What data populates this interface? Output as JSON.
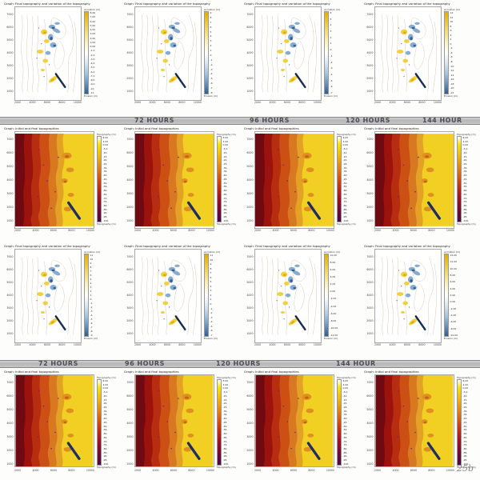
{
  "page": {
    "number": "25b"
  },
  "time_bands": [
    {
      "labels": [
        "72 HOURS",
        "96 HOURS",
        "120 HOURS",
        "144 HOUR"
      ],
      "positions": [
        "28%",
        "52%",
        "72%",
        "88%"
      ]
    },
    {
      "labels": [
        "72 HOURS",
        "96 HOURS",
        "120 HOURS",
        "144 HOUR"
      ],
      "positions": [
        "8%",
        "26%",
        "45%",
        "70%"
      ]
    }
  ],
  "axes": {
    "x_ticks": [
      "2000",
      "4000",
      "6000",
      "8000",
      "10000"
    ],
    "y_ticks": [
      "7000",
      "6000",
      "5000",
      "4000",
      "3000",
      "2000",
      "1000"
    ]
  },
  "rows": [
    {
      "type": "variation",
      "title": "Graph: Final topography and variation of the topography",
      "colorbar_top": "Accretion (m)",
      "colorbar_bottom": "Erosion (m)",
      "plots": [
        {
          "cb": [
            "8.00",
            "7.00",
            "6.00",
            "5.00",
            "4.00",
            "3.00",
            "2.00",
            "1.00",
            "0.00",
            "-1.0",
            "-2.0",
            "-3.0",
            "-4.0",
            "-5.0",
            "-6.0",
            "-7.0",
            "-8.0",
            "-9.0",
            "-10.",
            "-11."
          ]
        },
        {
          "cb": [
            "9",
            "8",
            "7",
            "6",
            "5",
            "4",
            "3",
            "2",
            "1",
            "0",
            "-1",
            "-2",
            "-3",
            "-4",
            "-5",
            "-6",
            "-7",
            "-8"
          ]
        },
        {
          "cb": [
            "6",
            "5",
            "4",
            "3",
            "2",
            "1",
            "0",
            "-1",
            "-2",
            "-3",
            "-4",
            "-5",
            "-6",
            "-7"
          ]
        },
        {
          "cb": [
            "14",
            "12",
            "10",
            "8",
            "6",
            "4",
            "2",
            "0",
            "-2",
            "-4",
            "-6",
            "-8",
            "-10",
            "-12",
            "-14",
            "-16",
            "-18",
            "-20",
            "-22"
          ]
        }
      ]
    },
    {
      "type": "topo",
      "title": "Graph: Initial and final topographies",
      "colorbar_top": "Topography (m)",
      "colorbar_bottom": "Topography (m)",
      "plots": [
        {
          "cb": [
            "8.00",
            "4.00",
            "0.00",
            "-5.0",
            "-10.",
            "-15.",
            "-20.",
            "-25.",
            "-30.",
            "-35.",
            "-40.",
            "-45.",
            "-50.",
            "-55.",
            "-60.",
            "-65.",
            "-70.",
            "-75.",
            "-80.",
            "-85.",
            "-90.",
            "-95.",
            "-100."
          ]
        },
        {
          "cb": [
            "8.00",
            "4.00",
            "0.00",
            "-5.0",
            "-10.",
            "-15.",
            "-20.",
            "-25.",
            "-30.",
            "-35.",
            "-40.",
            "-45.",
            "-50.",
            "-55.",
            "-60.",
            "-65.",
            "-70.",
            "-75.",
            "-80.",
            "-85.",
            "-90.",
            "-95.",
            "-100."
          ]
        },
        {
          "cb": [
            "8.00",
            "4.00",
            "0.00",
            "-5.0",
            "-10.",
            "-15.",
            "-20.",
            "-25.",
            "-30.",
            "-35.",
            "-40.",
            "-45.",
            "-50.",
            "-55.",
            "-60.",
            "-65.",
            "-70.",
            "-75.",
            "-80.",
            "-85.",
            "-90.",
            "-95.",
            "-100."
          ]
        },
        {
          "cb": [
            "8.00",
            "4.00",
            "0.00",
            "-5.0",
            "-10.",
            "-15.",
            "-20.",
            "-25.",
            "-30.",
            "-35.",
            "-40.",
            "-45.",
            "-50.",
            "-55.",
            "-60.",
            "-65.",
            "-70.",
            "-75.",
            "-80.",
            "-85.",
            "-90.",
            "-95.",
            "-100."
          ]
        }
      ]
    },
    {
      "type": "variation",
      "title": "Graph: Final topography and variation of the topography",
      "colorbar_top": "Accretion (m)",
      "colorbar_bottom": "Erosion (m)",
      "plots": [
        {
          "cb": [
            "11",
            "10",
            "9",
            "8",
            "7",
            "6",
            "5",
            "4",
            "3",
            "2",
            "1",
            "0",
            "-1",
            "-2",
            "-3",
            "-4",
            "-5",
            "-6",
            "-7",
            "-8",
            "-9"
          ]
        },
        {
          "cb": [
            "11",
            "10",
            "9",
            "8",
            "7",
            "6",
            "5",
            "4",
            "3",
            "2",
            "1",
            "0",
            "-1",
            "-2",
            "-3",
            "-4",
            "-5",
            "-6",
            "-7"
          ]
        },
        {
          "cb": [
            "10.00",
            "8.00",
            "6.00",
            "4.00",
            "2.00",
            "0.00",
            "-2.00",
            "-4.00",
            "-6.00",
            "-8.00",
            "-10.00",
            "-12.00"
          ]
        },
        {
          "cb": [
            "14.00",
            "12.00",
            "10.00",
            "8.00",
            "6.00",
            "4.00",
            "2.00",
            "0.00",
            "-2.00",
            "-4.00",
            "-6.00",
            "-8.00",
            "-10.00"
          ]
        }
      ]
    },
    {
      "type": "topo",
      "title": "Graph: Initial and final topographies",
      "colorbar_top": "Topography (m)",
      "colorbar_bottom": "Topography (m)",
      "plots": [
        {
          "cb": [
            "8.00",
            "4.00",
            "0.00",
            "-5.0",
            "-10.",
            "-15.",
            "-20.",
            "-25.",
            "-30.",
            "-35.",
            "-40.",
            "-45.",
            "-50.",
            "-55.",
            "-60.",
            "-65.",
            "-70.",
            "-75.",
            "-80.",
            "-85.",
            "-90.",
            "-95.",
            "-100."
          ]
        },
        {
          "cb": [
            "8.00",
            "4.00",
            "0.00",
            "-5.0",
            "-10.",
            "-15.",
            "-20.",
            "-25.",
            "-30.",
            "-35.",
            "-40.",
            "-45.",
            "-50.",
            "-55.",
            "-60.",
            "-65.",
            "-70.",
            "-75.",
            "-80.",
            "-85.",
            "-90.",
            "-95.",
            "-100."
          ]
        },
        {
          "cb": [
            "8.00",
            "4.00",
            "0.00",
            "-5.0",
            "-10.",
            "-15.",
            "-20.",
            "-25.",
            "-30.",
            "-35.",
            "-40.",
            "-45.",
            "-50.",
            "-55.",
            "-60.",
            "-65.",
            "-70.",
            "-75.",
            "-80.",
            "-85.",
            "-90.",
            "-95.",
            "-100."
          ]
        },
        {
          "cb": [
            "8.00",
            "4.00",
            "0.00",
            "-5.0",
            "-10.",
            "-15.",
            "-20.",
            "-25.",
            "-30.",
            "-35.",
            "-40.",
            "-45.",
            "-50.",
            "-55.",
            "-60.",
            "-65.",
            "-70.",
            "-75.",
            "-80.",
            "-85.",
            "-90.",
            "-95.",
            "-100."
          ]
        }
      ]
    }
  ]
}
